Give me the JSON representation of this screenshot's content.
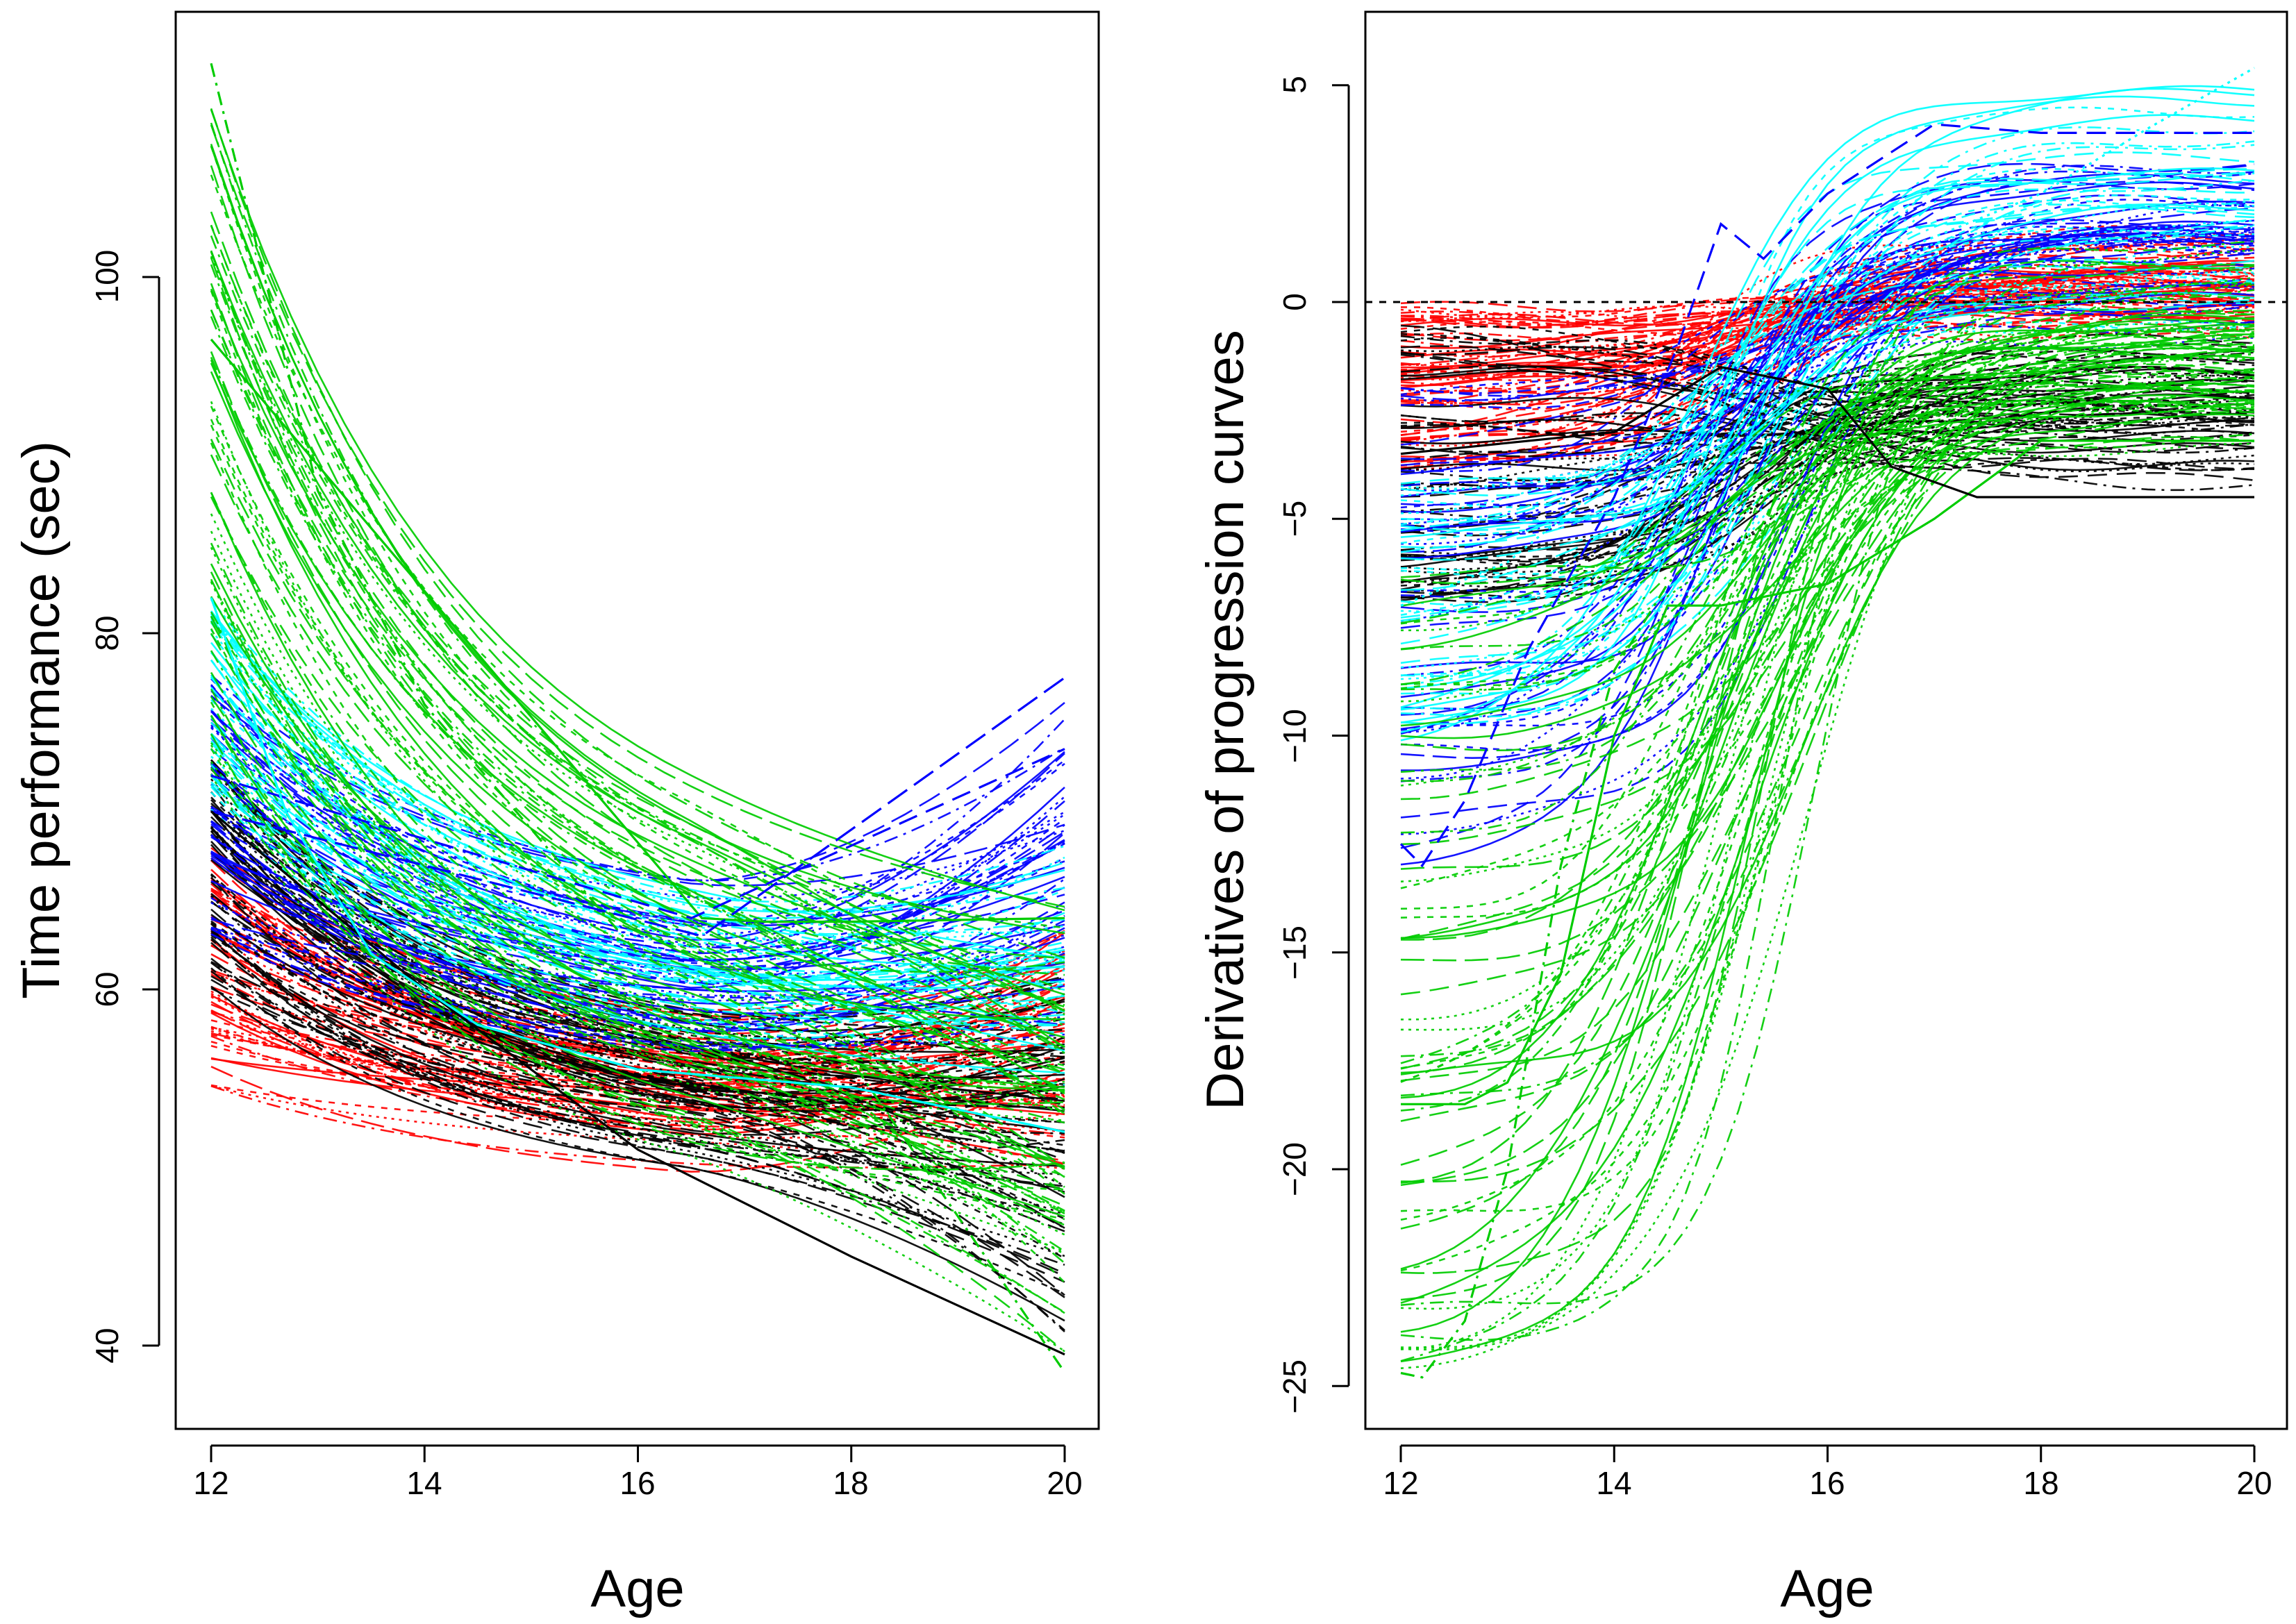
{
  "chart_data": [
    {
      "type": "line",
      "panel": "left",
      "xlabel": "Age",
      "ylabel": "Time performance (sec)",
      "xlim": [
        12,
        20
      ],
      "ylim": [
        35,
        115
      ],
      "xticks": [
        12,
        14,
        16,
        18,
        20
      ],
      "yticks": [
        40,
        60,
        80,
        100
      ],
      "xtick_labels": [
        "12",
        "14",
        "16",
        "18",
        "20"
      ],
      "ytick_labels": [
        "40",
        "60",
        "80",
        "100"
      ],
      "reference_line": null,
      "groups": [
        {
          "color": "#ff0000",
          "count": 60,
          "start_range": [
            54.5,
            68
          ],
          "mid_value": 53,
          "end_range": [
            48,
            65
          ]
        },
        {
          "color": "#000000",
          "count": 70,
          "start_range": [
            60,
            73
          ],
          "mid_value": 52,
          "end_range": [
            39.5,
            62
          ]
        },
        {
          "color": "#0000ff",
          "count": 50,
          "start_range": [
            63,
            78
          ],
          "mid_value": 59,
          "end_range": [
            55,
            77
          ]
        },
        {
          "color": "#00ffff",
          "count": 40,
          "start_range": [
            70,
            82
          ],
          "mid_value": 58,
          "end_range": [
            52,
            68
          ]
        },
        {
          "color": "#00cc00",
          "count": 70,
          "start_range": [
            72,
            112
          ],
          "mid_value": 56,
          "end_range": [
            38.5,
            66
          ]
        }
      ]
    },
    {
      "type": "line",
      "panel": "right",
      "xlabel": "Age",
      "ylabel": "Derivatives of progression curves",
      "xlim": [
        12,
        20
      ],
      "ylim": [
        -26,
        6.5
      ],
      "xticks": [
        12,
        14,
        16,
        18,
        20
      ],
      "yticks": [
        -25,
        -20,
        -15,
        -10,
        -5,
        0,
        5
      ],
      "xtick_labels": [
        "12",
        "14",
        "16",
        "18",
        "20"
      ],
      "ytick_labels": [
        "−25",
        "−20",
        "−15",
        "−10",
        "−5",
        "0",
        "5"
      ],
      "reference_line": 0,
      "groups": [
        {
          "color": "#ff0000",
          "count": 60,
          "start_range": [
            -4,
            -0.1
          ],
          "end_range": [
            -1,
            1.8
          ]
        },
        {
          "color": "#000000",
          "count": 60,
          "start_range": [
            -7,
            -0.5
          ],
          "end_range": [
            -4.5,
            -0.5
          ]
        },
        {
          "color": "#0000ff",
          "count": 50,
          "start_range": [
            -13,
            -2
          ],
          "end_range": [
            -1,
            4.2
          ]
        },
        {
          "color": "#00ffff",
          "count": 40,
          "start_range": [
            -10.5,
            -4
          ],
          "end_range": [
            -1,
            5.4
          ]
        },
        {
          "color": "#00cc00",
          "count": 70,
          "start_range": [
            -24.8,
            -6
          ],
          "end_range": [
            -4,
            1.5
          ]
        }
      ]
    }
  ]
}
